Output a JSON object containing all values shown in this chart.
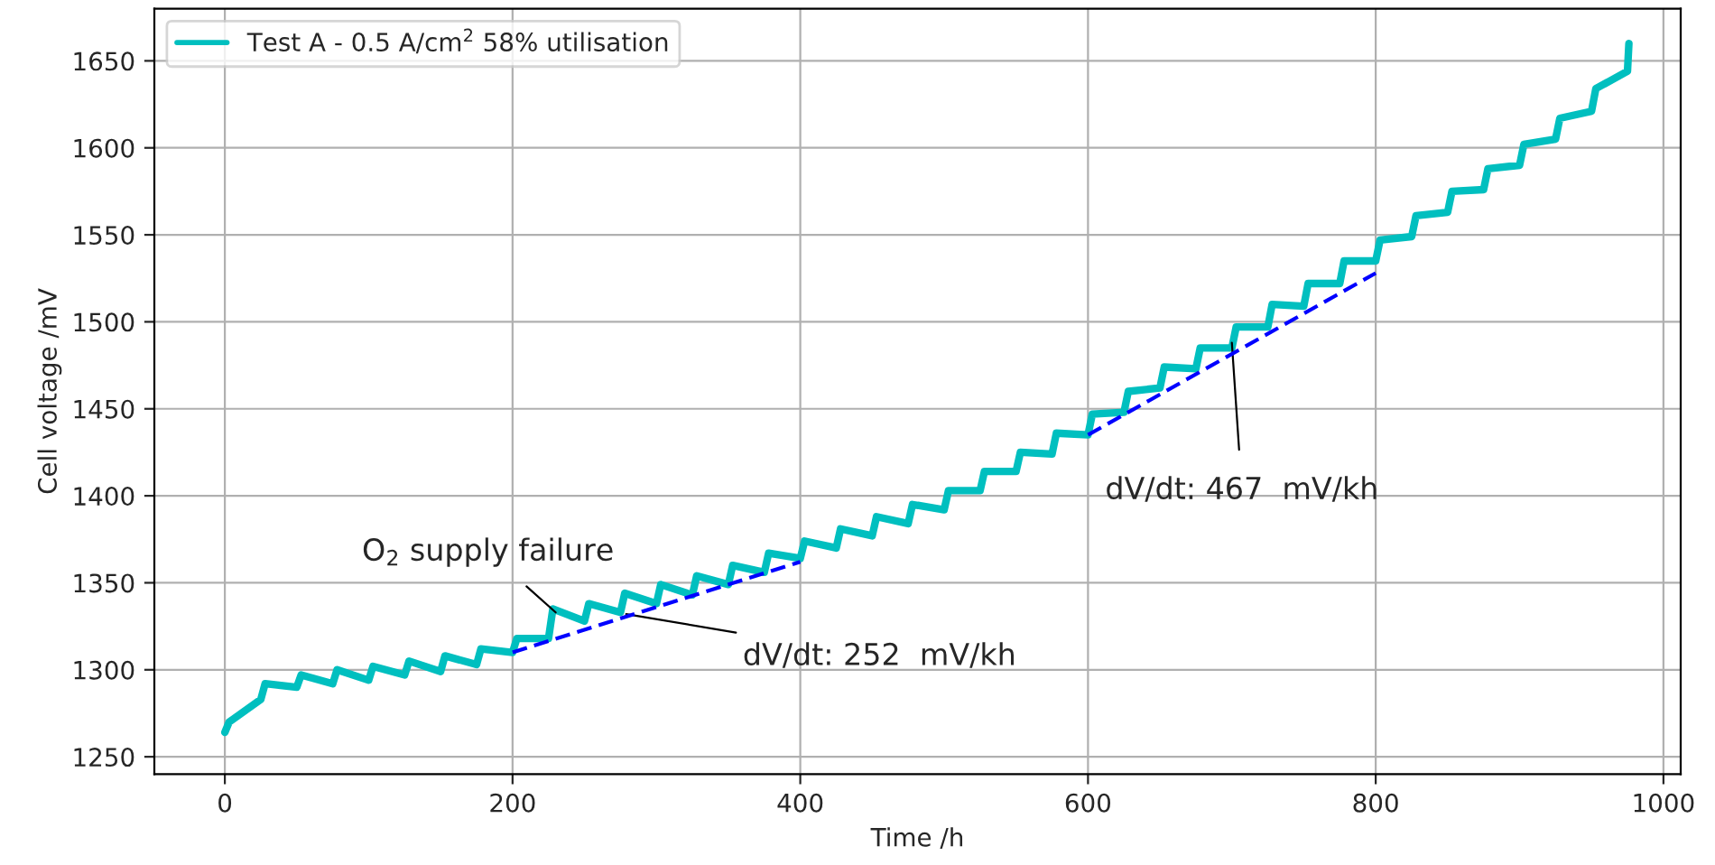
{
  "chart_data": {
    "type": "line",
    "xlabel": "Time /h",
    "ylabel": "Cell voltage /mV",
    "xlim": [
      -49,
      1012
    ],
    "xticks": [
      0,
      200,
      400,
      600,
      800,
      1000
    ],
    "ylim": [
      1240,
      1680
    ],
    "yticks": [
      1250,
      1300,
      1350,
      1400,
      1450,
      1500,
      1550,
      1600,
      1650
    ],
    "grid": true,
    "legend": "top left",
    "series": [
      {
        "name": "Test A - 0.5 A/cm$^{2}$ 58% utilisation",
        "color": "#00bfbf",
        "line_style": "solid",
        "x": [
          0,
          3,
          25,
          28,
          50,
          53,
          75,
          78,
          100,
          103,
          125,
          128,
          150,
          153,
          175,
          178,
          200,
          203,
          225,
          228,
          250,
          253,
          275,
          278,
          300,
          303,
          325,
          328,
          350,
          353,
          375,
          378,
          400,
          403,
          425,
          428,
          450,
          453,
          475,
          478,
          500,
          503,
          525,
          528,
          550,
          553,
          575,
          578,
          600,
          603,
          625,
          628,
          650,
          653,
          675,
          678,
          700,
          703,
          725,
          728,
          750,
          753,
          775,
          778,
          800,
          803,
          825,
          828,
          850,
          853,
          875,
          878,
          900,
          903,
          925,
          928,
          950,
          953,
          975,
          976
        ],
        "values": [
          1264,
          1270,
          1283,
          1292,
          1290,
          1297,
          1292,
          1300,
          1294,
          1302,
          1297,
          1305,
          1299,
          1308,
          1303,
          1312,
          1310,
          1318,
          1318,
          1335,
          1328,
          1338,
          1333,
          1344,
          1338,
          1349,
          1343,
          1354,
          1349,
          1360,
          1356,
          1367,
          1364,
          1374,
          1370,
          1381,
          1377,
          1388,
          1384,
          1395,
          1392,
          1403,
          1403,
          1414,
          1414,
          1425,
          1424,
          1436,
          1435,
          1447,
          1448,
          1460,
          1462,
          1474,
          1473,
          1485,
          1485,
          1497,
          1497,
          1510,
          1509,
          1522,
          1522,
          1535,
          1535,
          1547,
          1549,
          1561,
          1563,
          1575,
          1576,
          1588,
          1590,
          1602,
          1605,
          1617,
          1621,
          1634,
          1644,
          1660
        ]
      },
      {
        "color": "#0000ff",
        "line_style": "dashed",
        "x": [
          200,
          400
        ],
        "values": [
          1310,
          1362
        ]
      },
      {
        "color": "#0000ff",
        "line_style": "dashed",
        "x": [
          600,
          800
        ],
        "values": [
          1435,
          1528
        ]
      }
    ],
    "annotations": [
      {
        "text": "O$_{2}$ supply failure",
        "x": 230,
        "y": 1333
      },
      {
        "text": "dV/dt: 252  mV/kh",
        "x": 279,
        "y": 1332
      },
      {
        "text": "dV/dt: 467  mV/kh",
        "x": 700,
        "y": 1488
      }
    ]
  }
}
